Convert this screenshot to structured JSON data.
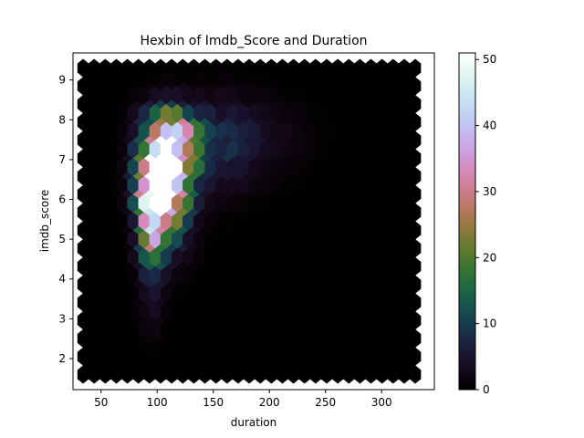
{
  "chart_data": {
    "type": "heatmap",
    "subtype": "hexbin",
    "title": "Hexbin of Imdb_Score and Duration",
    "xlabel": "duration",
    "ylabel": "imdb_score",
    "xlim": [
      25,
      347
    ],
    "ylim": [
      1.22,
      9.68
    ],
    "xticks": [
      50,
      100,
      150,
      200,
      250,
      300
    ],
    "yticks": [
      2,
      3,
      4,
      5,
      6,
      7,
      8,
      9
    ],
    "x_range": [
      34,
      330
    ],
    "y_range": [
      1.6,
      9.3
    ],
    "gridsize": [
      30,
      17
    ],
    "colormap": "cubehelix",
    "colorbar": {
      "min": 0,
      "max": 51,
      "ticks": [
        0,
        10,
        20,
        30,
        40,
        50
      ]
    },
    "density_clusters": [
      {
        "x": 100,
        "y": 6.5,
        "peak": 51,
        "sx": 12,
        "sy": 0.55
      },
      {
        "x": 110,
        "y": 6.3,
        "peak": 32,
        "sx": 14,
        "sy": 0.9
      },
      {
        "x": 95,
        "y": 5.4,
        "peak": 26,
        "sx": 8,
        "sy": 0.6
      },
      {
        "x": 118,
        "y": 7.4,
        "peak": 26,
        "sx": 14,
        "sy": 0.45
      },
      {
        "x": 106,
        "y": 7.9,
        "peak": 10,
        "sx": 16,
        "sy": 0.4
      },
      {
        "x": 96,
        "y": 4.5,
        "peak": 8,
        "sx": 8,
        "sy": 0.45
      },
      {
        "x": 95,
        "y": 3.3,
        "peak": 3,
        "sx": 8,
        "sy": 0.6
      },
      {
        "x": 150,
        "y": 7.3,
        "peak": 6,
        "sx": 28,
        "sy": 0.8
      },
      {
        "x": 175,
        "y": 7.6,
        "peak": 2.5,
        "sx": 40,
        "sy": 0.7
      }
    ]
  }
}
